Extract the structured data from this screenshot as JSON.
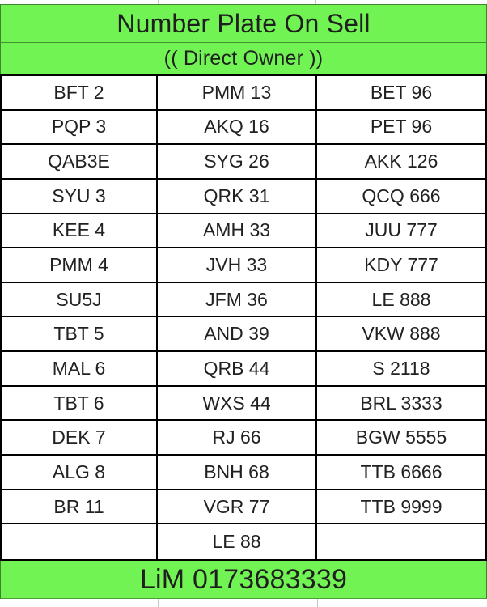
{
  "header": {
    "title": "Number Plate On Sell",
    "subtitle": "(( Direct Owner ))"
  },
  "table": {
    "columns": 3,
    "rows": [
      {
        "cells": [
          "BFT 2",
          "PMM 13",
          "BET 96"
        ]
      },
      {
        "cells": [
          "PQP 3",
          "AKQ 16",
          "PET 96"
        ]
      },
      {
        "cells": [
          "QAB3E",
          "SYG 26",
          "AKK 126"
        ]
      },
      {
        "cells": [
          "SYU 3",
          "QRK 31",
          "QCQ 666"
        ]
      },
      {
        "cells": [
          "KEE 4",
          "AMH 33",
          "JUU 777"
        ]
      },
      {
        "cells": [
          "PMM 4",
          "JVH 33",
          "KDY 777"
        ]
      },
      {
        "cells": [
          "SU5J",
          "JFM 36",
          "LE 888"
        ]
      },
      {
        "cells": [
          "TBT 5",
          "AND 39",
          "VKW 888"
        ]
      },
      {
        "cells": [
          "MAL 6",
          "QRB 44",
          "S 2118"
        ]
      },
      {
        "cells": [
          "TBT 6",
          "WXS 44",
          "BRL 3333"
        ]
      },
      {
        "cells": [
          "DEK 7",
          "RJ 66",
          "BGW 5555"
        ]
      },
      {
        "cells": [
          "ALG 8",
          "BNH 68",
          "TTB 6666"
        ]
      },
      {
        "cells": [
          "BR 11",
          "VGR 77",
          "TTB 9999"
        ]
      },
      {
        "cells": [
          "",
          "LE 88",
          ""
        ]
      }
    ]
  },
  "footer": {
    "contact": "LiM 0173683339"
  },
  "colors": {
    "accent_green": "#71f353",
    "table_border": "#000000",
    "text": "#212121",
    "gridline_gray": "#c6c6c6"
  }
}
